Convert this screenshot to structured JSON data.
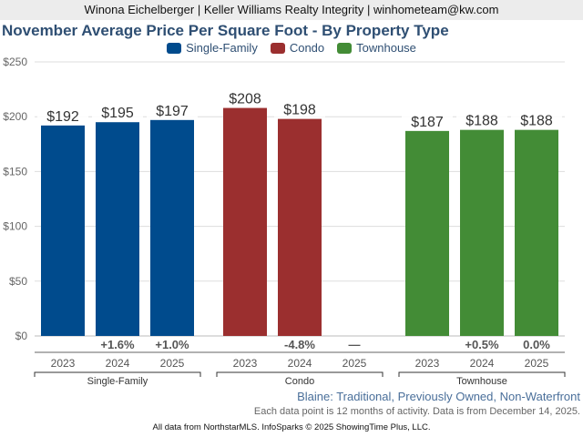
{
  "header": {
    "banner": "Winona Eichelberger | Keller Williams Realty Integrity | winhometeam@kw.com"
  },
  "footer": {
    "subtitle": "Blaine: Traditional, Previously Owned, Non-Waterfront",
    "note": "Each data point is 12 months of activity. Data is from December 14, 2025.",
    "credit": "All data from NorthstarMLS. InfoSparks © 2025 ShowingTime Plus, LLC."
  },
  "chart_data": {
    "type": "bar",
    "title": "November Average Price Per Square Foot - By Property Type",
    "xlabel": "",
    "ylabel": "",
    "ylim": [
      0,
      250
    ],
    "yticks": [
      0,
      50,
      100,
      150,
      200,
      250
    ],
    "ytick_labels": [
      "$0",
      "$50",
      "$100",
      "$150",
      "$200",
      "$250"
    ],
    "grid": true,
    "legend_position": "top-center",
    "categories": [
      "2023",
      "2024",
      "2025"
    ],
    "series": [
      {
        "name": "Single-Family",
        "color": "#004b8d",
        "values": [
          192,
          195,
          197
        ],
        "labels": [
          "$192",
          "$195",
          "$197"
        ],
        "changes": [
          "",
          "+1.6%",
          "+1.0%"
        ]
      },
      {
        "name": "Condo",
        "color": "#9b2f2f",
        "values": [
          208,
          198,
          null
        ],
        "labels": [
          "$208",
          "$198",
          ""
        ],
        "changes": [
          "",
          "-4.8%",
          "—"
        ]
      },
      {
        "name": "Townhouse",
        "color": "#438c36",
        "values": [
          187,
          188,
          188
        ],
        "labels": [
          "$187",
          "$188",
          "$188"
        ],
        "changes": [
          "",
          "+0.5%",
          "0.0%"
        ]
      }
    ]
  }
}
